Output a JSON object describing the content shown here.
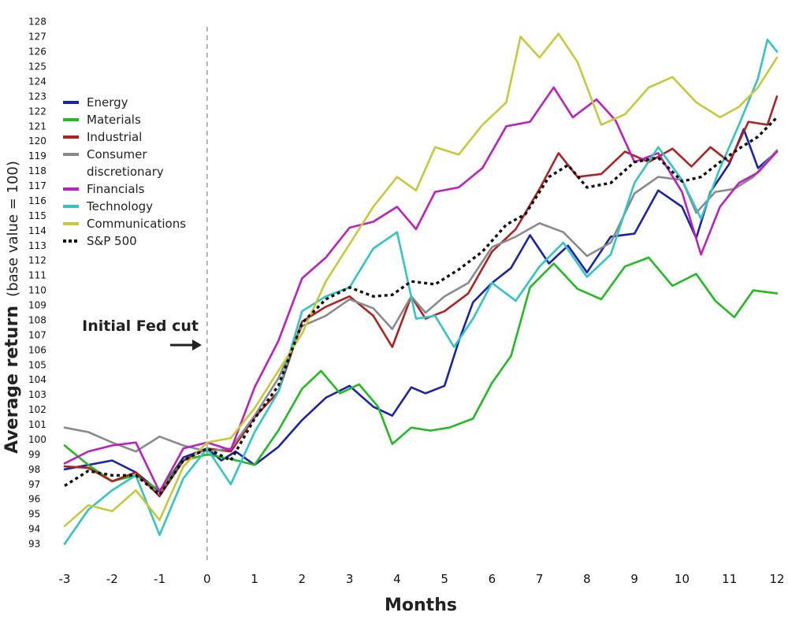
{
  "chart_data": {
    "type": "line",
    "ylabel_bold": "Average return",
    "ylabel_light": "(base value = 100)",
    "xlabel": "Months",
    "xlim": [
      -3,
      12
    ],
    "ylim": [
      92.5,
      128.3
    ],
    "x_ticks": [
      "-3",
      "-2",
      "-1",
      "0",
      "1",
      "2",
      "3",
      "4",
      "5",
      "6",
      "7",
      "8",
      "9",
      "10",
      "11",
      "12"
    ],
    "y_ticks": [
      "93",
      "94",
      "95",
      "96",
      "97",
      "98",
      "99",
      "100",
      "101",
      "102",
      "103",
      "104",
      "105",
      "106",
      "107",
      "108",
      "109",
      "110",
      "111",
      "112",
      "113",
      "114",
      "115",
      "116",
      "117",
      "118",
      "119",
      "120",
      "121",
      "122",
      "123",
      "124",
      "125",
      "126",
      "127",
      "128"
    ],
    "annotation": "Initial Fed cut",
    "annotation_x": 0,
    "legend_position": "top-left",
    "series": [
      {
        "name": "Energy",
        "color": "#1b24a8",
        "dash": false,
        "points": [
          [
            -3,
            98
          ],
          [
            -2.5,
            98.3
          ],
          [
            -2,
            98.6
          ],
          [
            -1.5,
            97.8
          ],
          [
            -1,
            96.5
          ],
          [
            -0.5,
            98.8
          ],
          [
            0,
            99.4
          ],
          [
            0.3,
            98.6
          ],
          [
            0.6,
            99.2
          ],
          [
            1,
            98.3
          ],
          [
            1.5,
            99.5
          ],
          [
            2,
            101.3
          ],
          [
            2.5,
            102.8
          ],
          [
            3,
            103.6
          ],
          [
            3.5,
            102.2
          ],
          [
            3.9,
            101.6
          ],
          [
            4.3,
            103.5
          ],
          [
            4.6,
            103.1
          ],
          [
            5,
            103.6
          ],
          [
            5.3,
            106.6
          ],
          [
            5.6,
            109.2
          ],
          [
            6,
            110.5
          ],
          [
            6.4,
            111.5
          ],
          [
            6.8,
            113.7
          ],
          [
            7.2,
            111.8
          ],
          [
            7.6,
            113
          ],
          [
            8,
            111.2
          ],
          [
            8.5,
            113.6
          ],
          [
            9,
            113.8
          ],
          [
            9.5,
            116.7
          ],
          [
            10,
            115.6
          ],
          [
            10.3,
            113.5
          ],
          [
            10.6,
            116.6
          ],
          [
            11,
            118.5
          ],
          [
            11.3,
            120.8
          ],
          [
            11.6,
            118.2
          ],
          [
            12,
            119.3
          ]
        ]
      },
      {
        "name": "Materials",
        "color": "#22bb22",
        "dash": false,
        "points": [
          [
            -3,
            99.6
          ],
          [
            -2.5,
            98.3
          ],
          [
            -2,
            97.2
          ],
          [
            -1.5,
            97.6
          ],
          [
            -1,
            96.6
          ],
          [
            -0.5,
            98.6
          ],
          [
            0,
            99
          ],
          [
            0.5,
            98.7
          ],
          [
            1,
            98.3
          ],
          [
            1.5,
            100.6
          ],
          [
            2,
            103.4
          ],
          [
            2.4,
            104.6
          ],
          [
            2.8,
            103.1
          ],
          [
            3.2,
            103.7
          ],
          [
            3.6,
            102.2
          ],
          [
            3.9,
            99.7
          ],
          [
            4.3,
            100.8
          ],
          [
            4.7,
            100.6
          ],
          [
            5.1,
            100.8
          ],
          [
            5.6,
            101.4
          ],
          [
            6,
            103.8
          ],
          [
            6.4,
            105.6
          ],
          [
            6.8,
            110.2
          ],
          [
            7.3,
            111.8
          ],
          [
            7.8,
            110.1
          ],
          [
            8.3,
            109.4
          ],
          [
            8.8,
            111.6
          ],
          [
            9.3,
            112.2
          ],
          [
            9.8,
            110.3
          ],
          [
            10.3,
            111.1
          ],
          [
            10.7,
            109.3
          ],
          [
            11.1,
            108.2
          ],
          [
            11.5,
            110
          ],
          [
            12,
            109.8
          ]
        ]
      },
      {
        "name": "Industrial",
        "color": "#b02222",
        "dash": false,
        "points": [
          [
            -3,
            98.2
          ],
          [
            -2.5,
            98.1
          ],
          [
            -2,
            97.2
          ],
          [
            -1.5,
            97.8
          ],
          [
            -1,
            96.2
          ],
          [
            -0.5,
            98.6
          ],
          [
            0,
            99.4
          ],
          [
            0.5,
            99.2
          ],
          [
            1,
            101.5
          ],
          [
            1.5,
            103.2
          ],
          [
            2,
            107.9
          ],
          [
            2.5,
            108.9
          ],
          [
            3,
            109.6
          ],
          [
            3.5,
            108.3
          ],
          [
            3.9,
            106.2
          ],
          [
            4.3,
            109.6
          ],
          [
            4.6,
            108.1
          ],
          [
            5,
            108.6
          ],
          [
            5.5,
            109.8
          ],
          [
            6,
            112.6
          ],
          [
            6.5,
            114.1
          ],
          [
            7,
            116.8
          ],
          [
            7.4,
            119.2
          ],
          [
            7.8,
            117.6
          ],
          [
            8.3,
            117.8
          ],
          [
            8.8,
            119.3
          ],
          [
            9.3,
            118.6
          ],
          [
            9.8,
            119.5
          ],
          [
            10.2,
            118.3
          ],
          [
            10.6,
            119.6
          ],
          [
            11,
            118.6
          ],
          [
            11.4,
            121.3
          ],
          [
            11.8,
            121.1
          ],
          [
            12,
            123
          ]
        ]
      },
      {
        "name": "Consumer discretionary",
        "color": "#8a8a8a",
        "dash": false,
        "points": [
          [
            -3,
            100.8
          ],
          [
            -2.5,
            100.5
          ],
          [
            -2,
            99.8
          ],
          [
            -1.5,
            99.2
          ],
          [
            -1,
            100.2
          ],
          [
            -0.5,
            99.6
          ],
          [
            0,
            99.2
          ],
          [
            0.5,
            99.4
          ],
          [
            1,
            101.6
          ],
          [
            1.5,
            104.1
          ],
          [
            2,
            107.6
          ],
          [
            2.5,
            108.3
          ],
          [
            3,
            109.4
          ],
          [
            3.5,
            108.8
          ],
          [
            3.9,
            107.4
          ],
          [
            4.3,
            109.6
          ],
          [
            4.6,
            108.5
          ],
          [
            5,
            109.6
          ],
          [
            5.5,
            110.5
          ],
          [
            6,
            112.9
          ],
          [
            6.5,
            113.6
          ],
          [
            7,
            114.5
          ],
          [
            7.5,
            113.9
          ],
          [
            8,
            112.3
          ],
          [
            8.5,
            113.2
          ],
          [
            9,
            116.5
          ],
          [
            9.5,
            117.6
          ],
          [
            10,
            117.4
          ],
          [
            10.3,
            115.2
          ],
          [
            10.7,
            116.6
          ],
          [
            11.1,
            116.8
          ],
          [
            11.5,
            117.6
          ],
          [
            12,
            119.4
          ]
        ]
      },
      {
        "name": "Financials",
        "color": "#bb22bb",
        "dash": false,
        "points": [
          [
            -3,
            98.4
          ],
          [
            -2.5,
            99.2
          ],
          [
            -2,
            99.6
          ],
          [
            -1.5,
            99.8
          ],
          [
            -1,
            96.5
          ],
          [
            -0.5,
            99.4
          ],
          [
            0,
            99.8
          ],
          [
            0.5,
            99.3
          ],
          [
            1,
            103.5
          ],
          [
            1.5,
            106.6
          ],
          [
            2,
            110.8
          ],
          [
            2.5,
            112.2
          ],
          [
            3,
            114.2
          ],
          [
            3.5,
            114.6
          ],
          [
            4,
            115.6
          ],
          [
            4.4,
            114.1
          ],
          [
            4.8,
            116.6
          ],
          [
            5.3,
            116.9
          ],
          [
            5.8,
            118.2
          ],
          [
            6.3,
            121
          ],
          [
            6.8,
            121.3
          ],
          [
            7.3,
            123.6
          ],
          [
            7.7,
            121.6
          ],
          [
            8.2,
            122.8
          ],
          [
            8.6,
            121.4
          ],
          [
            9,
            118.6
          ],
          [
            9.5,
            119.2
          ],
          [
            10,
            116.6
          ],
          [
            10.4,
            112.4
          ],
          [
            10.8,
            115.6
          ],
          [
            11.2,
            117.2
          ],
          [
            11.6,
            117.9
          ],
          [
            12,
            119.3
          ]
        ]
      },
      {
        "name": "Technology",
        "color": "#33c4c4",
        "dash": false,
        "points": [
          [
            -3,
            93
          ],
          [
            -2.5,
            95.3
          ],
          [
            -2,
            96.6
          ],
          [
            -1.5,
            97.6
          ],
          [
            -1,
            93.6
          ],
          [
            -0.5,
            97.4
          ],
          [
            0,
            99.4
          ],
          [
            0.5,
            97
          ],
          [
            1,
            100.5
          ],
          [
            1.5,
            103.2
          ],
          [
            2,
            108.6
          ],
          [
            2.5,
            109.6
          ],
          [
            3,
            110.2
          ],
          [
            3.5,
            112.8
          ],
          [
            4,
            113.9
          ],
          [
            4.4,
            108.1
          ],
          [
            4.8,
            108.3
          ],
          [
            5.2,
            106.2
          ],
          [
            5.6,
            108.1
          ],
          [
            6,
            110.5
          ],
          [
            6.5,
            109.3
          ],
          [
            7,
            111.6
          ],
          [
            7.5,
            113.2
          ],
          [
            8,
            110.9
          ],
          [
            8.5,
            112.4
          ],
          [
            9,
            117.2
          ],
          [
            9.5,
            119.6
          ],
          [
            10,
            117.4
          ],
          [
            10.4,
            114.8
          ],
          [
            10.8,
            118.2
          ],
          [
            11.2,
            121.1
          ],
          [
            11.6,
            124.2
          ],
          [
            11.8,
            126.8
          ],
          [
            12,
            126
          ]
        ]
      },
      {
        "name": "Communications",
        "color": "#c8c83a",
        "dash": false,
        "points": [
          [
            -3,
            94.2
          ],
          [
            -2.5,
            95.6
          ],
          [
            -2,
            95.2
          ],
          [
            -1.5,
            96.6
          ],
          [
            -1,
            94.6
          ],
          [
            -0.5,
            98.2
          ],
          [
            0,
            99.8
          ],
          [
            0.5,
            100.1
          ],
          [
            1,
            102.1
          ],
          [
            1.5,
            104.6
          ],
          [
            2,
            107.1
          ],
          [
            2.5,
            110.6
          ],
          [
            3,
            113.1
          ],
          [
            3.5,
            115.6
          ],
          [
            4,
            117.6
          ],
          [
            4.4,
            116.7
          ],
          [
            4.8,
            119.6
          ],
          [
            5.3,
            119.1
          ],
          [
            5.8,
            121.1
          ],
          [
            6.3,
            122.6
          ],
          [
            6.6,
            127
          ],
          [
            7,
            125.6
          ],
          [
            7.4,
            127.2
          ],
          [
            7.8,
            125.3
          ],
          [
            8.3,
            121.1
          ],
          [
            8.8,
            121.8
          ],
          [
            9.3,
            123.6
          ],
          [
            9.8,
            124.3
          ],
          [
            10.3,
            122.6
          ],
          [
            10.8,
            121.6
          ],
          [
            11.2,
            122.3
          ],
          [
            11.6,
            123.6
          ],
          [
            12,
            125.6
          ]
        ]
      },
      {
        "name": "S&P 500",
        "color": "#111111",
        "dash": true,
        "points": [
          [
            -3,
            96.9
          ],
          [
            -2.5,
            97.9
          ],
          [
            -2,
            97.6
          ],
          [
            -1.5,
            97.6
          ],
          [
            -1,
            96.3
          ],
          [
            -0.5,
            98.6
          ],
          [
            0,
            99.4
          ],
          [
            0.5,
            98.6
          ],
          [
            1,
            101.4
          ],
          [
            1.5,
            103.6
          ],
          [
            2,
            107.8
          ],
          [
            2.5,
            109.4
          ],
          [
            3,
            110.2
          ],
          [
            3.5,
            109.6
          ],
          [
            3.9,
            109.7
          ],
          [
            4.3,
            110.6
          ],
          [
            4.8,
            110.4
          ],
          [
            5.3,
            111.4
          ],
          [
            5.8,
            112.6
          ],
          [
            6.3,
            114.4
          ],
          [
            6.7,
            115.1
          ],
          [
            7.2,
            117.6
          ],
          [
            7.6,
            118.4
          ],
          [
            8,
            116.9
          ],
          [
            8.5,
            117.2
          ],
          [
            9,
            118.6
          ],
          [
            9.5,
            118.9
          ],
          [
            10,
            117.3
          ],
          [
            10.4,
            117.6
          ],
          [
            10.8,
            118.6
          ],
          [
            11.2,
            119.5
          ],
          [
            11.6,
            120.3
          ],
          [
            12,
            121.6
          ]
        ]
      }
    ]
  }
}
